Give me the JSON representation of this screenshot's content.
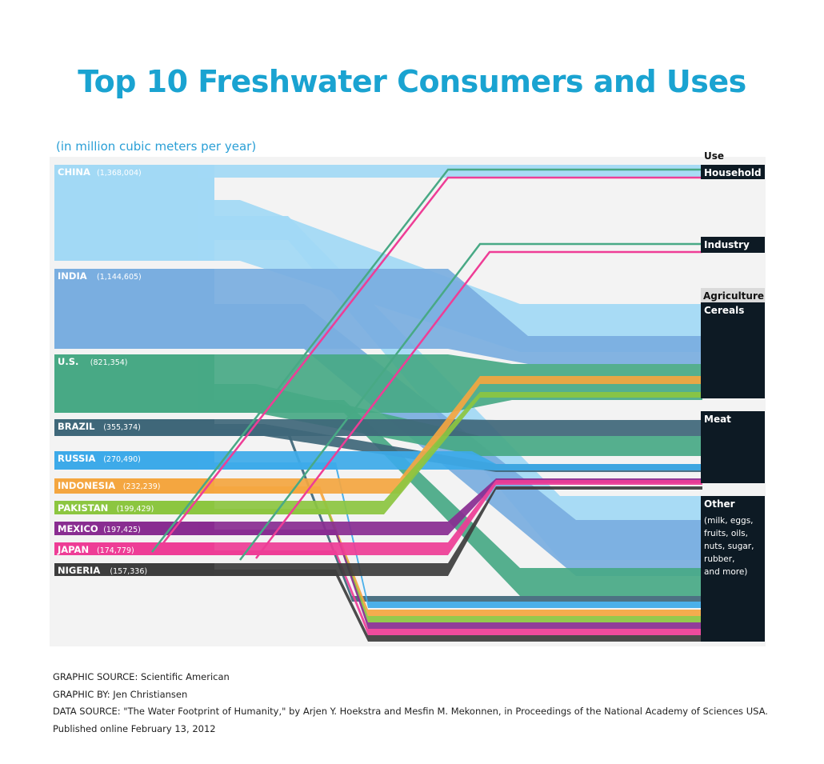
{
  "title": "Top 10 Freshwater Consumers and Uses",
  "subtitle": "(in million cubic meters per year)",
  "chart_data": {
    "type": "sankey",
    "title": "Top 10 Freshwater Consumers and Uses",
    "unit": "(in million cubic meters per year)",
    "use_header": "Use",
    "sources": [
      {
        "name": "CHINA",
        "value_label": "(1,368,004)",
        "value": 1368004,
        "color": "#a2d9f5",
        "label_color": "#ffffff"
      },
      {
        "name": "INDIA",
        "value_label": "(1,144,605)",
        "value": 1144605,
        "color": "#7aaee0",
        "label_color": "#ffffff"
      },
      {
        "name": "U.S.",
        "value_label": "(821,354)",
        "value": 821354,
        "color": "#48a985",
        "label_color": "#ffffff"
      },
      {
        "name": "BRAZIL",
        "value_label": "(355,374)",
        "value": 355374,
        "color": "#3f6779",
        "label_color": "#ffffff"
      },
      {
        "name": "RUSSIA",
        "value_label": "(270,490)",
        "value": 270490,
        "color": "#3daae9",
        "label_color": "#ffffff"
      },
      {
        "name": "INDONESIA",
        "value_label": "(232,239)",
        "value": 232239,
        "color": "#f4a640",
        "label_color": "#ffffff"
      },
      {
        "name": "PAKISTAN",
        "value_label": "(199,429)",
        "value": 199429,
        "color": "#8cc640",
        "label_color": "#ffffff"
      },
      {
        "name": "MEXICO",
        "value_label": "(197,425)",
        "value": 197425,
        "color": "#892d91",
        "label_color": "#ffffff"
      },
      {
        "name": "JAPAN",
        "value_label": "(174,779)",
        "value": 174779,
        "color": "#ee3d96",
        "label_color": "#ffffff"
      },
      {
        "name": "NIGERIA",
        "value_label": "(157,336)",
        "value": 157336,
        "color": "#3d3d3d",
        "label_color": "#ffffff"
      }
    ],
    "uses": [
      {
        "name": "Household",
        "group": ""
      },
      {
        "name": "Industry",
        "group": ""
      },
      {
        "name": "Cereals",
        "group": "Agriculture"
      },
      {
        "name": "Meat",
        "group": "Agriculture"
      },
      {
        "name": "Other",
        "detail": [
          "(milk, eggs,",
          "fruits, oils,",
          "nuts, sugar,",
          "rubber,",
          "and more)"
        ],
        "group": "Agriculture"
      }
    ],
    "agriculture_label": "Agriculture"
  },
  "credits": [
    "GRAPHIC SOURCE: Scientific American",
    "GRAPHIC BY: Jen Christiansen",
    "DATA SOURCE: \"The Water Footprint of Humanity,\" by Arjen Y. Hoekstra and Mesfin M. Mekonnen, in Proceedings of the National Academy of Sciences USA.",
    "Published online February 13, 2012"
  ]
}
